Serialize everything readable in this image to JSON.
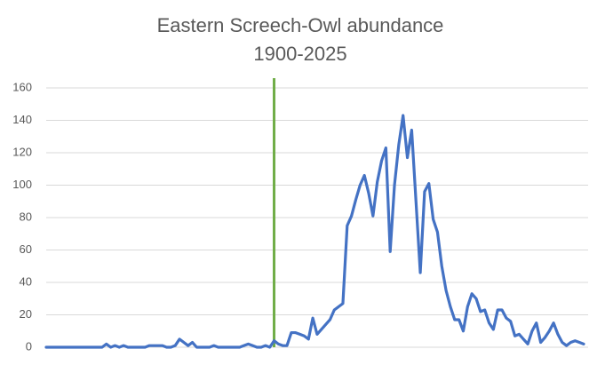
{
  "chart_data": {
    "type": "line",
    "title": "Eastern Screech-Owl abundance",
    "subtitle": "1900-2025",
    "values": [
      0,
      0,
      0,
      0,
      0,
      0,
      0,
      0,
      0,
      0,
      0,
      0,
      0,
      0,
      2,
      0,
      1,
      0,
      1,
      0,
      0,
      0,
      0,
      0,
      1,
      1,
      1,
      1,
      0,
      0,
      1,
      5,
      3,
      1,
      3,
      0,
      0,
      0,
      0,
      1,
      0,
      0,
      0,
      0,
      0,
      0,
      1,
      2,
      1,
      0,
      0,
      1,
      0,
      4,
      2,
      1,
      1,
      9,
      9,
      8,
      7,
      5,
      18,
      8,
      11,
      14,
      17,
      23,
      25,
      27,
      75,
      81,
      91,
      100,
      106,
      95,
      81,
      102,
      115,
      123,
      59,
      100,
      125,
      143,
      117,
      134,
      90,
      46,
      96,
      101,
      79,
      71,
      50,
      35,
      25,
      17,
      17,
      10,
      25,
      33,
      30,
      22,
      23,
      15,
      11,
      23,
      23,
      18,
      16,
      7,
      8,
      5,
      2,
      10,
      15,
      3,
      6,
      10,
      15,
      8,
      3,
      1,
      3,
      4,
      3,
      2
    ],
    "color": "#4472c4",
    "ylim": [
      0,
      160
    ],
    "yticks": [
      0,
      20,
      40,
      60,
      80,
      100,
      120,
      140,
      160
    ],
    "grid": true,
    "vline": {
      "index": 53,
      "color": "#70ad47"
    }
  }
}
